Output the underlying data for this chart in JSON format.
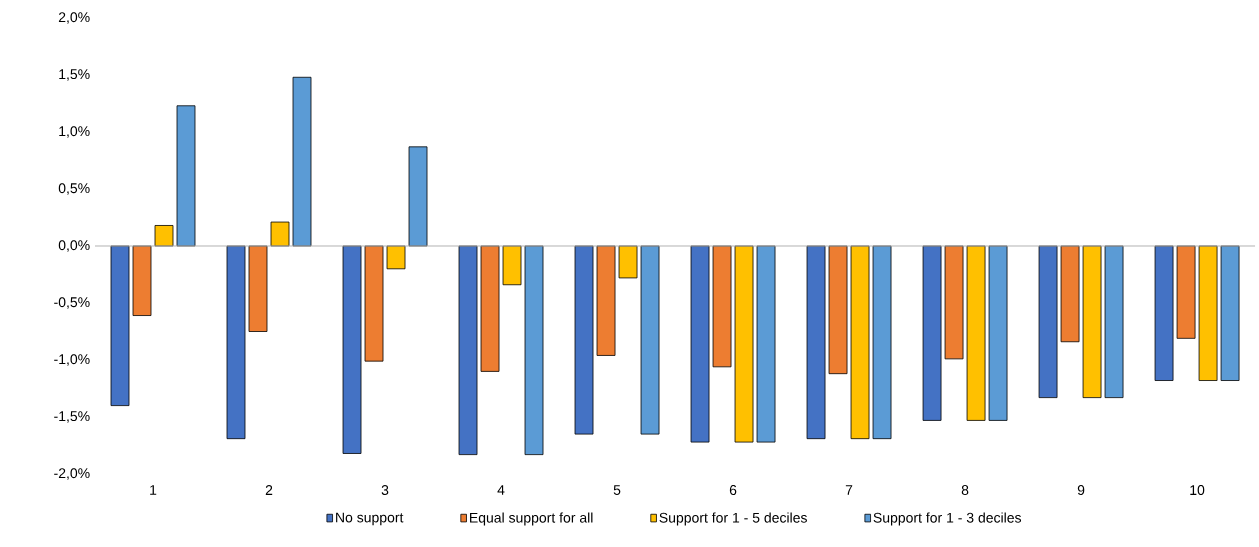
{
  "chart_data": {
    "type": "bar",
    "categories": [
      "1",
      "2",
      "3",
      "4",
      "5",
      "6",
      "7",
      "8",
      "9",
      "10"
    ],
    "series": [
      {
        "name": "No support",
        "color": "#4472c4",
        "values": [
          -1.4,
          -1.69,
          -1.82,
          -1.83,
          -1.65,
          -1.72,
          -1.69,
          -1.53,
          -1.33,
          -1.18
        ]
      },
      {
        "name": "Equal support for all",
        "color": "#ed7d31",
        "values": [
          -0.61,
          -0.75,
          -1.01,
          -1.1,
          -0.96,
          -1.06,
          -1.12,
          -0.99,
          -0.84,
          -0.81
        ]
      },
      {
        "name": "Support for 1 - 5 deciles",
        "color": "#ffc000",
        "values": [
          0.18,
          0.21,
          -0.2,
          -0.34,
          -0.28,
          -1.72,
          -1.69,
          -1.53,
          -1.33,
          -1.18
        ]
      },
      {
        "name": "Support for 1 - 3 deciles",
        "color": "#5b9bd5",
        "values": [
          1.23,
          1.48,
          0.87,
          -1.83,
          -1.65,
          -1.72,
          -1.69,
          -1.53,
          -1.33,
          -1.18
        ]
      }
    ],
    "ylim": [
      -2.0,
      2.0
    ],
    "yticks": [
      {
        "value": -2.0,
        "label": "-2,0%"
      },
      {
        "value": -1.5,
        "label": "-1,5%"
      },
      {
        "value": -1.0,
        "label": "-1,0%"
      },
      {
        "value": -0.5,
        "label": "-0,5%"
      },
      {
        "value": 0.0,
        "label": "0,0%"
      },
      {
        "value": 0.5,
        "label": "0,5%"
      },
      {
        "value": 1.0,
        "label": "1,0%"
      },
      {
        "value": 1.5,
        "label": "1,5%"
      },
      {
        "value": 2.0,
        "label": "2,0%"
      }
    ],
    "legend": "bottom"
  }
}
